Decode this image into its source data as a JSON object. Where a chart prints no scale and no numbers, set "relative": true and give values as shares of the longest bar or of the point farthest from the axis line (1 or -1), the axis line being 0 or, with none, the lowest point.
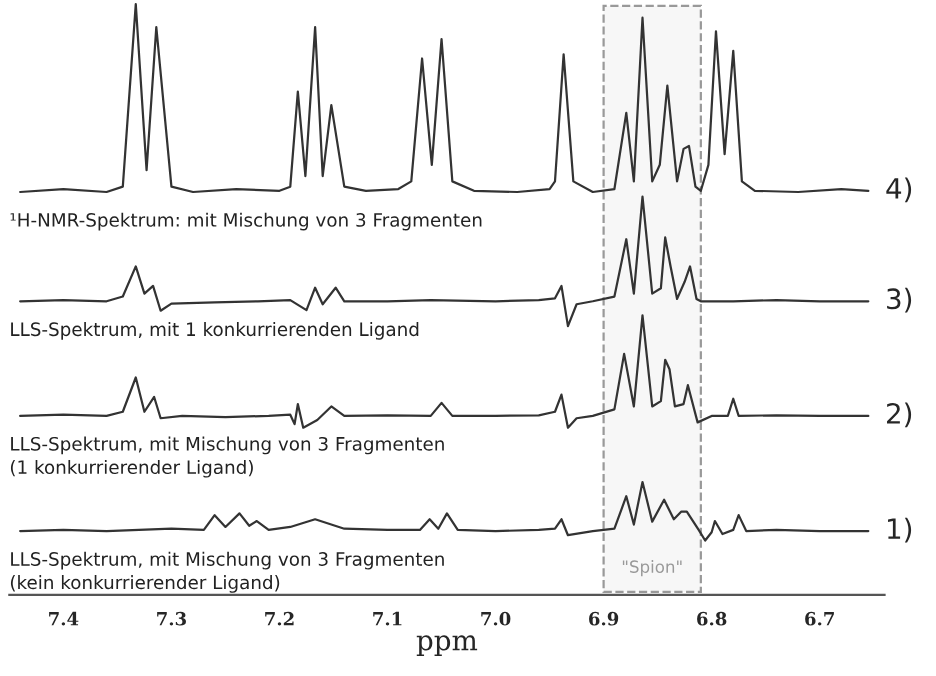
{
  "chart_data": {
    "type": "line",
    "relative": true,
    "xlabel": "ppm",
    "xlim": [
      7.45,
      6.64
    ],
    "xticks": [
      7.4,
      7.3,
      7.2,
      7.1,
      {
        "value": 7.0,
        "label": "7.0"
      },
      6.9,
      6.8,
      6.7
    ],
    "tick_labels": "x",
    "grid": false,
    "marker": "none",
    "line_style": "solid",
    "bands": [
      {
        "axis": "x",
        "from": 6.9,
        "to": 6.81,
        "label": "\"Spion\"",
        "color": "#999999"
      }
    ],
    "annotations": [
      "4)",
      "3)",
      "2)",
      "1)"
    ],
    "series": [
      {
        "name": "¹H-NMR-Spektrum: mit Mischung von 3 Fragmenten",
        "color": "#333333",
        "x": [
          7.44,
          7.4,
          7.36,
          7.345,
          7.333,
          7.323,
          7.314,
          7.3,
          7.28,
          7.24,
          7.2,
          7.19,
          7.183,
          7.176,
          7.167,
          7.16,
          7.152,
          7.14,
          7.12,
          7.09,
          7.078,
          7.068,
          7.059,
          7.05,
          7.04,
          7.02,
          6.98,
          6.95,
          6.945,
          6.937,
          6.928,
          6.91,
          6.89,
          6.879,
          6.872,
          6.864,
          6.855,
          6.848,
          6.841,
          6.832,
          6.826,
          6.821,
          6.815,
          6.81,
          6.803,
          6.796,
          6.788,
          6.78,
          6.772,
          6.76,
          6.72,
          6.68,
          6.655
        ],
        "values": [
          0.682,
          0.687,
          0.682,
          0.691,
          1.0,
          0.719,
          0.961,
          0.691,
          0.682,
          0.687,
          0.684,
          0.691,
          0.852,
          0.709,
          0.961,
          0.709,
          0.829,
          0.691,
          0.684,
          0.687,
          0.7,
          0.908,
          0.728,
          0.941,
          0.7,
          0.684,
          0.682,
          0.687,
          0.7,
          0.915,
          0.7,
          0.682,
          0.687,
          0.816,
          0.7,
          0.977,
          0.7,
          0.728,
          0.862,
          0.7,
          0.755,
          0.76,
          0.691,
          0.684,
          0.728,
          0.954,
          0.746,
          0.921,
          0.7,
          0.684,
          0.682,
          0.687,
          0.684
        ]
      },
      {
        "name": "LLS-Spektrum, mit 1 konkurrierenden Ligand",
        "color": "#333333",
        "x": [
          7.44,
          7.4,
          7.36,
          7.345,
          7.333,
          7.325,
          7.317,
          7.31,
          7.3,
          7.26,
          7.22,
          7.19,
          7.175,
          7.167,
          7.16,
          7.148,
          7.14,
          7.1,
          7.06,
          7.0,
          6.96,
          6.945,
          6.939,
          6.933,
          6.925,
          6.91,
          6.89,
          6.879,
          6.872,
          6.864,
          6.855,
          6.847,
          6.843,
          6.838,
          6.832,
          6.825,
          6.82,
          6.814,
          6.81,
          6.78,
          6.74,
          6.7,
          6.655
        ],
        "values": [
          0.497,
          0.499,
          0.497,
          0.505,
          0.556,
          0.51,
          0.523,
          0.481,
          0.493,
          0.495,
          0.497,
          0.499,
          0.482,
          0.52,
          0.492,
          0.52,
          0.497,
          0.497,
          0.499,
          0.497,
          0.499,
          0.502,
          0.523,
          0.455,
          0.492,
          0.497,
          0.505,
          0.602,
          0.51,
          0.674,
          0.51,
          0.519,
          0.605,
          0.556,
          0.501,
          0.53,
          0.556,
          0.501,
          0.497,
          0.497,
          0.499,
          0.497,
          0.497
        ]
      },
      {
        "name": "LLS-Spektrum, mit Mischung von 3 Fragmenten\n(1 konkurrierender Ligand)",
        "color": "#333333",
        "x": [
          7.44,
          7.4,
          7.36,
          7.345,
          7.333,
          7.325,
          7.316,
          7.31,
          7.29,
          7.25,
          7.21,
          7.19,
          7.186,
          7.183,
          7.178,
          7.165,
          7.152,
          7.14,
          7.1,
          7.06,
          7.05,
          7.04,
          7.0,
          6.96,
          6.945,
          6.939,
          6.933,
          6.925,
          6.91,
          6.89,
          6.881,
          6.872,
          6.864,
          6.855,
          6.847,
          6.843,
          6.839,
          6.834,
          6.826,
          6.822,
          6.813,
          6.8,
          6.785,
          6.78,
          6.775,
          6.74,
          6.7,
          6.655
        ],
        "values": [
          0.303,
          0.305,
          0.303,
          0.31,
          0.368,
          0.31,
          0.335,
          0.299,
          0.303,
          0.301,
          0.303,
          0.305,
          0.289,
          0.323,
          0.283,
          0.296,
          0.319,
          0.303,
          0.304,
          0.303,
          0.325,
          0.303,
          0.303,
          0.304,
          0.31,
          0.339,
          0.283,
          0.299,
          0.303,
          0.314,
          0.408,
          0.319,
          0.473,
          0.319,
          0.328,
          0.398,
          0.382,
          0.319,
          0.323,
          0.355,
          0.292,
          0.303,
          0.303,
          0.332,
          0.303,
          0.304,
          0.303,
          0.303
        ]
      },
      {
        "name": "LLS-Spektrum, mit Mischung von 3 Fragmenten\n(kein konkurrierender Ligand)",
        "color": "#333333",
        "x": [
          7.44,
          7.4,
          7.36,
          7.3,
          7.27,
          7.26,
          7.25,
          7.237,
          7.228,
          7.221,
          7.21,
          7.19,
          7.167,
          7.14,
          7.1,
          7.07,
          7.061,
          7.053,
          7.045,
          7.035,
          7.0,
          6.96,
          6.945,
          6.939,
          6.933,
          6.91,
          6.89,
          6.879,
          6.872,
          6.864,
          6.855,
          6.844,
          6.835,
          6.828,
          6.823,
          6.812,
          6.806,
          6.8,
          6.797,
          6.79,
          6.78,
          6.775,
          6.768,
          6.74,
          6.7,
          6.655
        ],
        "values": [
          0.108,
          0.11,
          0.108,
          0.112,
          0.11,
          0.135,
          0.115,
          0.138,
          0.117,
          0.125,
          0.11,
          0.115,
          0.128,
          0.112,
          0.11,
          0.11,
          0.128,
          0.112,
          0.138,
          0.11,
          0.108,
          0.11,
          0.112,
          0.128,
          0.101,
          0.108,
          0.112,
          0.167,
          0.119,
          0.191,
          0.124,
          0.161,
          0.128,
          0.141,
          0.141,
          0.11,
          0.092,
          0.106,
          0.125,
          0.103,
          0.11,
          0.135,
          0.108,
          0.11,
          0.108,
          0.108
        ]
      }
    ]
  }
}
